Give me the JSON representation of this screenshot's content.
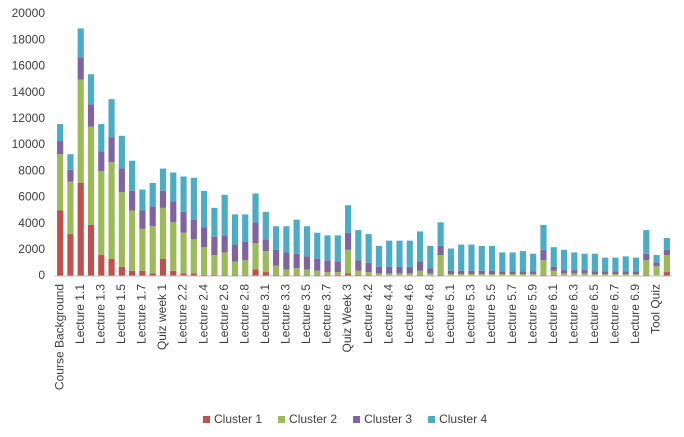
{
  "chart_data": {
    "type": "stacked_bar",
    "categories": [
      "Course Background",
      null,
      "Lecture 1.1",
      null,
      "Lecture 1.3",
      null,
      "Lecture 1.5",
      null,
      "Lecture 1.7",
      null,
      "Quiz week 1",
      null,
      "Lecture 2.2",
      null,
      "Lecture 2.4",
      null,
      "Lecture 2.6",
      null,
      "Lecture 2.8",
      null,
      "Lecture 3.1",
      null,
      "Lecture 3.3",
      null,
      "Lecture 3.5",
      null,
      "Lecture 3.7",
      null,
      "Quiz Week 3",
      null,
      "Lecture 4.2",
      null,
      "Lecture 4.4",
      null,
      "Lecture 4.6",
      null,
      "Lecture 4.8",
      null,
      "Lecture 5.1",
      null,
      "Lecture 5.3",
      null,
      "Lecture 5.5",
      null,
      "Lecture 5.7",
      null,
      "Lecture 5.9",
      null,
      "Lecture 6.1",
      null,
      "Lecture 6.3",
      null,
      "Lecture 6.5",
      null,
      "Lecture 6.7",
      null,
      "Lecture 6.9",
      null,
      "Tool Quiz",
      null
    ],
    "series": [
      {
        "name": "Cluster 1",
        "color": "#c0504d",
        "values": [
          5000,
          3200,
          7100,
          3900,
          1600,
          1300,
          700,
          400,
          400,
          200,
          1300,
          400,
          200,
          200,
          100,
          100,
          100,
          100,
          100,
          500,
          300,
          100,
          100,
          100,
          100,
          100,
          100,
          100,
          200,
          100,
          100,
          50,
          50,
          50,
          50,
          100,
          50,
          100,
          50,
          50,
          50,
          50,
          50,
          50,
          50,
          50,
          50,
          100,
          100,
          50,
          50,
          50,
          50,
          50,
          50,
          50,
          50,
          100,
          50,
          300
        ]
      },
      {
        "name": "Cluster 2",
        "color": "#9bbb59",
        "values": [
          4300,
          4000,
          7900,
          7500,
          6400,
          7400,
          5700,
          4600,
          3200,
          3600,
          3900,
          3700,
          3100,
          2600,
          2100,
          1500,
          1700,
          1000,
          1100,
          2000,
          1600,
          700,
          400,
          500,
          400,
          300,
          200,
          200,
          1800,
          300,
          200,
          150,
          150,
          150,
          150,
          300,
          150,
          1500,
          100,
          100,
          100,
          100,
          100,
          100,
          100,
          100,
          100,
          1100,
          300,
          150,
          150,
          150,
          100,
          100,
          100,
          100,
          100,
          1100,
          700,
          1300
        ]
      },
      {
        "name": "Cluster 3",
        "color": "#8064a2",
        "values": [
          1000,
          900,
          1700,
          1700,
          1500,
          1900,
          1800,
          1500,
          1400,
          1500,
          1300,
          1600,
          1600,
          1500,
          1500,
          1400,
          1300,
          1300,
          1400,
          1600,
          900,
          1200,
          1300,
          1100,
          1000,
          900,
          900,
          800,
          1300,
          800,
          700,
          500,
          500,
          500,
          500,
          700,
          400,
          700,
          250,
          250,
          250,
          250,
          250,
          200,
          200,
          200,
          200,
          800,
          300,
          250,
          250,
          250,
          200,
          200,
          200,
          200,
          200,
          500,
          300,
          400
        ]
      },
      {
        "name": "Cluster 4",
        "color": "#4bacc6",
        "values": [
          1300,
          1200,
          2200,
          2300,
          2100,
          2900,
          2500,
          2300,
          1600,
          1800,
          1700,
          2200,
          2700,
          3200,
          2800,
          2200,
          3100,
          2300,
          2100,
          2200,
          2100,
          1800,
          2000,
          2600,
          2300,
          2000,
          1900,
          2000,
          2100,
          2300,
          2200,
          1600,
          2000,
          2000,
          2000,
          2300,
          1700,
          1800,
          1700,
          2000,
          2000,
          1900,
          1900,
          1450,
          1450,
          1550,
          1350,
          1900,
          1500,
          1550,
          1350,
          1250,
          1350,
          1050,
          1050,
          1150,
          1050,
          1800,
          550,
          900
        ]
      }
    ],
    "ylim": [
      0,
      20000
    ],
    "yticks": [
      0,
      2000,
      4000,
      6000,
      8000,
      10000,
      12000,
      14000,
      16000,
      18000,
      20000
    ],
    "grid": false,
    "legend": "bottom"
  }
}
